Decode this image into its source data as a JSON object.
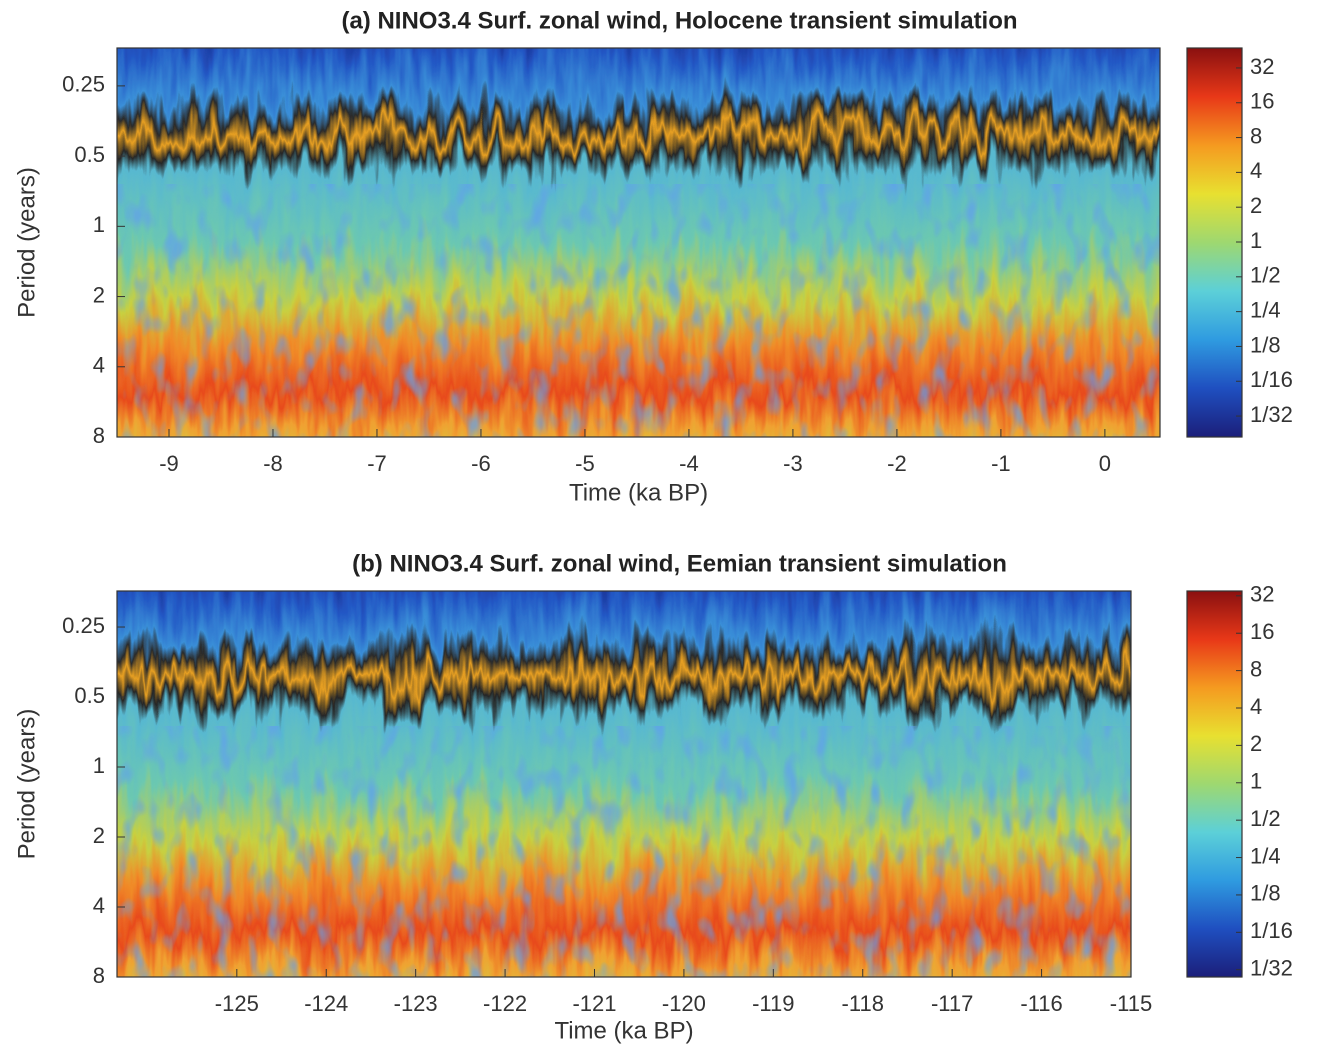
{
  "chart_data": [
    {
      "type": "heatmap",
      "title": "(a) NINO3.4 Surf. zonal wind, Holocene transient simulation",
      "xlabel": "Time (ka BP)",
      "ylabel": "Period (years)",
      "xlim": [
        -9.5,
        0.53
      ],
      "xticks": [
        -9,
        -8,
        -7,
        -6,
        -5,
        -4,
        -3,
        -2,
        -1,
        0
      ],
      "ylim": [
        0.172,
        8
      ],
      "yticks": [
        0.25,
        0.5,
        1,
        2,
        4,
        8
      ],
      "yscale": "log",
      "colorbar": {
        "lim": [
          0.0206,
          47.6
        ],
        "scale": "log",
        "ticks": [
          32,
          16,
          8,
          4,
          2,
          1,
          {
            "value": 0.5,
            "label": "1/2"
          },
          {
            "value": 0.25,
            "label": "1/4"
          },
          {
            "value": 0.125,
            "label": "1/8"
          },
          {
            "value": 0.0625,
            "label": "1/16"
          },
          {
            "value": 0.03125,
            "label": "1/32"
          }
        ]
      },
      "colormap": [
        "#1b1f7a",
        "#1f4fc0",
        "#2f9be0",
        "#5cd0d8",
        "#9ed870",
        "#e8e030",
        "#f59a20",
        "#e83818",
        "#8a1010"
      ]
    },
    {
      "type": "heatmap",
      "title": "(b) NINO3.4 Surf. zonal wind, Eemian transient simulation",
      "xlabel": "Time (ka BP)",
      "ylabel": "Period (years)",
      "xlim": [
        -126.34,
        -115
      ],
      "xticks": [
        -125,
        -124,
        -123,
        -122,
        -121,
        -120,
        -119,
        -118,
        -117,
        -116,
        -115
      ],
      "ylim": [
        0.175,
        8
      ],
      "yticks": [
        0.25,
        0.5,
        1,
        2,
        4,
        8
      ],
      "yscale": "log",
      "colorbar": {
        "lim": [
          0.0273,
          35
        ],
        "scale": "log",
        "ticks": [
          32,
          16,
          8,
          4,
          2,
          1,
          {
            "value": 0.5,
            "label": "1/2"
          },
          {
            "value": 0.25,
            "label": "1/4"
          },
          {
            "value": 0.125,
            "label": "1/8"
          },
          {
            "value": 0.0625,
            "label": "1/16"
          },
          {
            "value": 0.03125,
            "label": "1/32"
          }
        ]
      },
      "colormap": [
        "#1b1f7a",
        "#1f4fc0",
        "#2f9be0",
        "#5cd0d8",
        "#9ed870",
        "#e8e030",
        "#f59a20",
        "#e83818",
        "#8a1010"
      ]
    }
  ]
}
